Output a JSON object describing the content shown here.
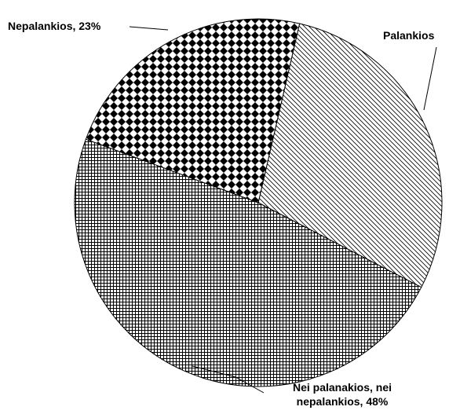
{
  "chart_data": {
    "type": "pie",
    "categories": [
      "Palankios",
      "Nei palanakios, nei nepalankios, 48%",
      "Nepalankios, 23%"
    ],
    "values": [
      29,
      48,
      23
    ]
  }
}
